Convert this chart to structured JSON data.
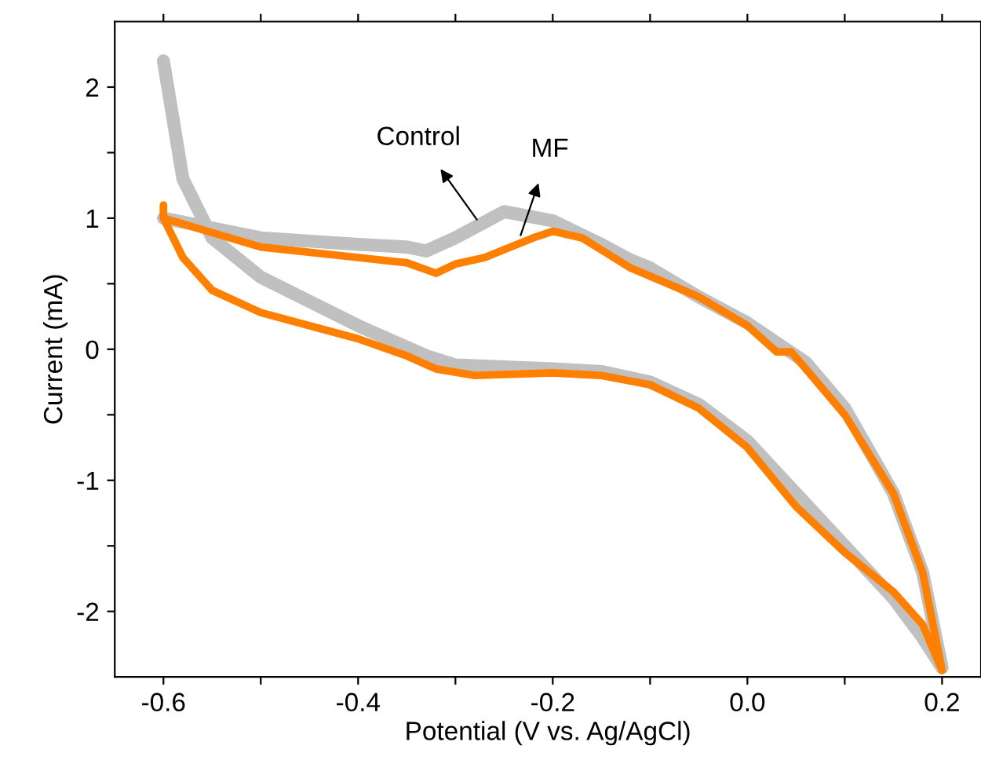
{
  "chart_data": {
    "type": "line",
    "xlabel": "Potential (V vs. Ag/AgCl)",
    "ylabel": "Current (mA)",
    "xlim": [
      -0.65,
      0.24
    ],
    "ylim": [
      -2.5,
      2.5
    ],
    "xticks": [
      -0.6,
      {
        "value": -0.5,
        "label": null
      },
      -0.4,
      {
        "value": -0.3,
        "label": null
      },
      -0.2,
      {
        "value": -0.1,
        "label": null
      },
      {
        "value": 0,
        "label": "0.0"
      },
      {
        "value": 0.1,
        "label": null
      },
      0.2
    ],
    "yticks": [
      -2,
      {
        "value": -1.5,
        "label": null
      },
      -1,
      {
        "value": -0.5,
        "label": null
      },
      0,
      {
        "value": 0.5,
        "label": null
      },
      1,
      {
        "value": 1.5,
        "label": null
      },
      2
    ],
    "grid": false,
    "legend": false,
    "line_style": "solid",
    "series": [
      {
        "color": "#c0c0c0",
        "x": [
          -0.6,
          -0.5,
          -0.4,
          -0.35,
          -0.33,
          -0.3,
          -0.25,
          -0.2,
          -0.15,
          -0.12,
          -0.1,
          -0.05,
          0.0,
          0.04,
          0.06,
          0.1,
          0.15,
          0.18,
          0.2,
          0.18,
          0.15,
          0.1,
          0.05,
          0.0,
          -0.05,
          -0.1,
          -0.15,
          -0.2,
          -0.3,
          -0.33,
          -0.4,
          -0.5,
          -0.55,
          -0.58,
          -0.6
        ],
        "values": [
          1.0,
          0.85,
          0.8,
          0.78,
          0.75,
          0.85,
          1.05,
          0.98,
          0.8,
          0.68,
          0.62,
          0.4,
          0.2,
          0.0,
          -0.1,
          -0.45,
          -1.1,
          -1.7,
          -2.43,
          -2.2,
          -1.9,
          -1.5,
          -1.1,
          -0.7,
          -0.42,
          -0.25,
          -0.17,
          -0.15,
          -0.12,
          -0.05,
          0.18,
          0.55,
          0.85,
          1.3,
          2.2
        ]
      },
      {
        "color": "#ff7f00",
        "x": [
          -0.6,
          -0.6,
          -0.5,
          -0.4,
          -0.35,
          -0.32,
          -0.3,
          -0.27,
          -0.22,
          -0.2,
          -0.17,
          -0.12,
          -0.05,
          0.0,
          0.03,
          0.045,
          0.06,
          0.1,
          0.15,
          0.18,
          0.2,
          0.18,
          0.15,
          0.1,
          0.05,
          0.0,
          -0.05,
          -0.1,
          -0.15,
          -0.2,
          -0.28,
          -0.32,
          -0.35,
          -0.4,
          -0.5,
          -0.55,
          -0.58,
          -0.6
        ],
        "values": [
          1.1,
          1.0,
          0.78,
          0.7,
          0.66,
          0.58,
          0.65,
          0.7,
          0.85,
          0.9,
          0.85,
          0.62,
          0.4,
          0.18,
          -0.02,
          -0.02,
          -0.15,
          -0.5,
          -1.1,
          -1.7,
          -2.45,
          -2.1,
          -1.85,
          -1.55,
          -1.2,
          -0.75,
          -0.45,
          -0.27,
          -0.2,
          -0.18,
          -0.2,
          -0.15,
          -0.05,
          0.08,
          0.28,
          0.45,
          0.7,
          1.0
        ]
      }
    ],
    "annotations": [
      {
        "text": "Control",
        "x": -0.278,
        "y": 0.99
      },
      {
        "text": "MF",
        "x": -0.233,
        "y": 0.87
      }
    ]
  }
}
